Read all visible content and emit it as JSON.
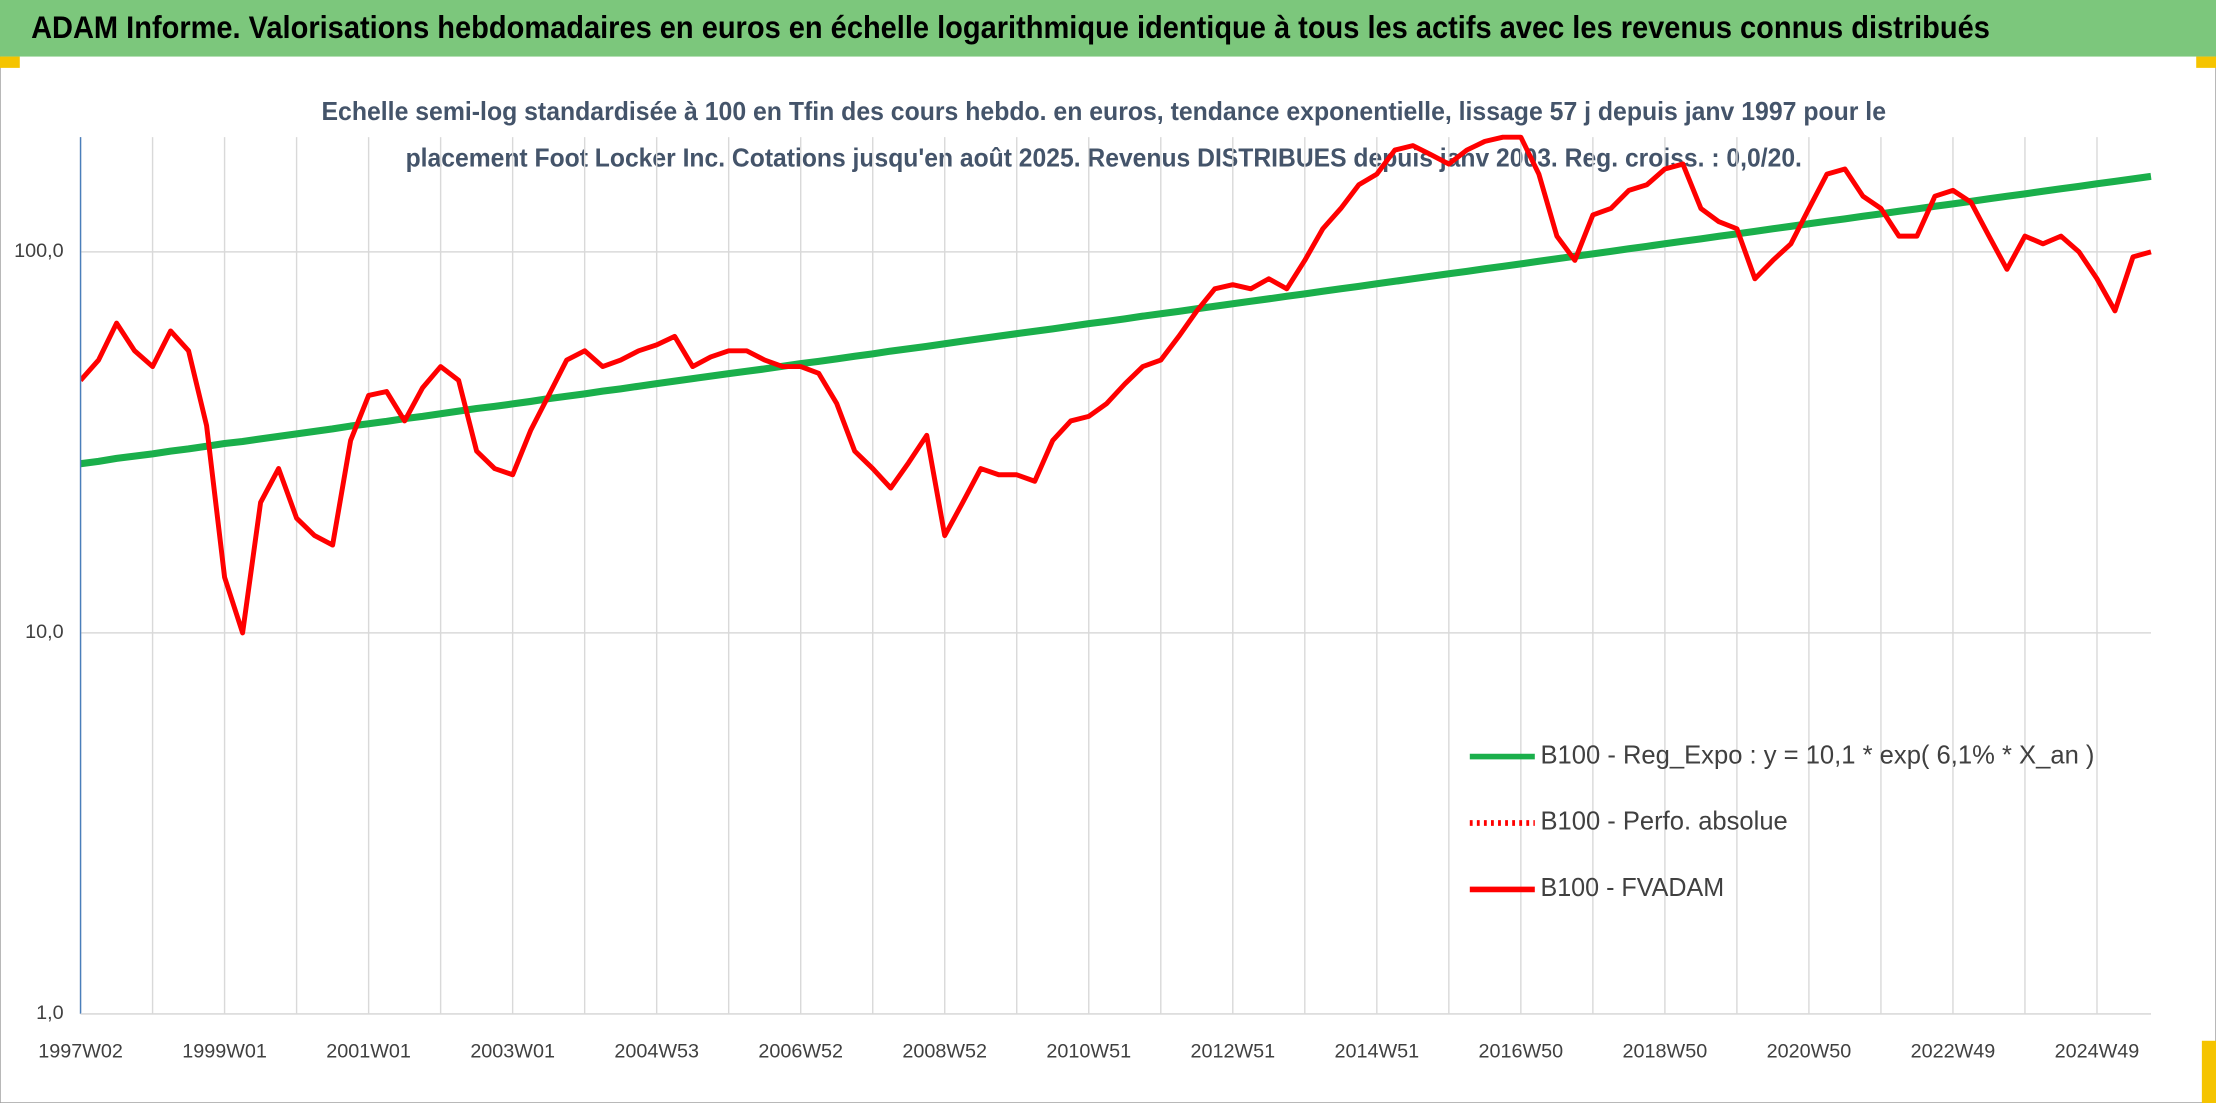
{
  "chart_data": {
    "type": "line",
    "title": "ADAM Informe. Valorisations hebdomadaires en euros en échelle logarithmique identique à tous les actifs avec les revenus connus distribués",
    "subtitle": [
      "Echelle semi-log standardisée à 100 en Tfin des cours hebdo. en euros, tendance exponentielle, lissage 57 j depuis janv 1997 pour le",
      "placement Foot Locker Inc. Cotations jusqu'en août 2025. Revenus DISTRIBUES depuis janv 2003. Reg. croiss. : 0,0/20."
    ],
    "log_scale": true,
    "ylim": [
      1,
      200
    ],
    "yticks": [
      {
        "value": 1,
        "label": "1,0"
      },
      {
        "value": 10,
        "label": "10,0"
      },
      {
        "value": 100,
        "label": "100,0"
      }
    ],
    "grid": true,
    "legend": "lower right",
    "categories": [
      "1997W02",
      null,
      null,
      null,
      null,
      null,
      null,
      null,
      "1999W01",
      null,
      null,
      null,
      null,
      null,
      null,
      null,
      "2001W01",
      null,
      null,
      null,
      null,
      null,
      null,
      null,
      "2003W01",
      null,
      null,
      null,
      null,
      null,
      null,
      null,
      "2004W53",
      null,
      null,
      null,
      null,
      null,
      null,
      null,
      "2006W52",
      null,
      null,
      null,
      null,
      null,
      null,
      null,
      "2008W52",
      null,
      null,
      null,
      null,
      null,
      null,
      null,
      "2010W51",
      null,
      null,
      null,
      null,
      null,
      null,
      null,
      "2012W51",
      null,
      null,
      null,
      null,
      null,
      null,
      null,
      "2014W51",
      null,
      null,
      null,
      null,
      null,
      null,
      null,
      "2016W50",
      null,
      null,
      null,
      null,
      null,
      null,
      null,
      "2018W50",
      null,
      null,
      null,
      null,
      null,
      null,
      null,
      "2020W50",
      null,
      null,
      null,
      null,
      null,
      null,
      null,
      "2022W49",
      null,
      null,
      null,
      null,
      null,
      null,
      null,
      "2024W49",
      null,
      null,
      null
    ],
    "series": [
      {
        "name": "B100 - Reg_Expo : y = 10,1 * exp( 6,1% *  X_an )",
        "color": "#1aaf4b",
        "dash": "solid",
        "values": [
          27.8,
          28.2,
          28.7,
          29.1,
          29.5,
          30.0,
          30.4,
          30.9,
          31.4,
          31.8,
          32.3,
          32.8,
          33.3,
          33.8,
          34.3,
          34.9,
          35.4,
          35.9,
          36.5,
          37.0,
          37.6,
          38.2,
          38.8,
          39.3,
          39.9,
          40.5,
          41.2,
          41.8,
          42.4,
          43.1,
          43.7,
          44.4,
          45.1,
          45.8,
          46.5,
          47.2,
          47.9,
          48.6,
          49.3,
          50.1,
          50.9,
          51.6,
          52.4,
          53.2,
          54.0,
          54.9,
          55.7,
          56.5,
          57.4,
          58.3,
          59.2,
          60.1,
          61.0,
          61.9,
          62.8,
          63.8,
          64.8,
          65.7,
          66.7,
          67.8,
          68.8,
          69.8,
          70.9,
          72.0,
          73.1,
          74.2,
          75.3,
          76.5,
          77.6,
          78.8,
          80.0,
          81.2,
          82.5,
          83.7,
          85.0,
          86.3,
          87.6,
          88.9,
          90.3,
          91.6,
          93.0,
          94.5,
          95.9,
          97.4,
          98.8,
          100.3,
          101.9,
          103.4,
          105.0,
          106.6,
          108.2,
          109.9,
          111.5,
          113.2,
          115.0,
          116.7,
          118.5,
          120.3,
          122.1,
          124.0,
          125.8,
          127.8,
          129.7,
          131.7,
          133.7,
          135.7,
          137.8,
          139.9,
          142.0,
          144.2,
          146.4,
          148.6,
          150.9,
          153.1,
          155.5,
          157.8
        ]
      },
      {
        "name": "B100 - Perfo. absolue",
        "color": "#ff0000",
        "dash": "dotted",
        "values": [
          null,
          null,
          null,
          null,
          null,
          null,
          null,
          null,
          null,
          null,
          null,
          null,
          null,
          null,
          null,
          null,
          null,
          null,
          null,
          null,
          null,
          null,
          null,
          null,
          null,
          null,
          null,
          null,
          null,
          null,
          null,
          null,
          null,
          null,
          null,
          null,
          null,
          null,
          null,
          null,
          null,
          null,
          null,
          null,
          null,
          null,
          null,
          null,
          null,
          null,
          null,
          null,
          null,
          null,
          null,
          null,
          null,
          null,
          null,
          null,
          null,
          null,
          null,
          null,
          null,
          null,
          null,
          null,
          null,
          null,
          null,
          null,
          null,
          null,
          null,
          null,
          null,
          null,
          null,
          null,
          null,
          null,
          null,
          null,
          null,
          null,
          null,
          null,
          null,
          null,
          null,
          null,
          null,
          null,
          null,
          null,
          null,
          null,
          null,
          null,
          null,
          null,
          null,
          null,
          null,
          null,
          null,
          null,
          null,
          null,
          null,
          null,
          null,
          null,
          null,
          null
        ]
      },
      {
        "name": "B100 - FVADAM",
        "color": "#ff0000",
        "dash": "solid",
        "values": [
          46,
          52,
          65,
          55,
          50,
          62,
          55,
          35,
          14,
          10,
          22,
          27,
          20,
          18,
          17,
          32,
          42,
          43,
          36,
          44,
          50,
          46,
          30,
          27,
          26,
          34,
          42,
          52,
          55,
          50,
          52,
          55,
          57,
          60,
          50,
          53,
          55,
          55,
          52,
          50,
          50,
          48,
          40,
          30,
          27,
          24,
          28,
          33,
          18,
          22,
          27,
          26,
          26,
          25,
          32,
          36,
          37,
          40,
          45,
          50,
          52,
          60,
          70,
          80,
          82,
          80,
          85,
          80,
          95,
          115,
          130,
          150,
          160,
          185,
          190,
          180,
          170,
          185,
          195,
          200,
          200,
          160,
          110,
          95,
          125,
          130,
          145,
          150,
          165,
          170,
          130,
          120,
          115,
          85,
          95,
          105,
          130,
          160,
          165,
          140,
          130,
          110,
          110,
          140,
          145,
          135,
          110,
          90,
          110,
          105,
          110,
          100,
          85,
          70,
          97,
          100
        ]
      }
    ]
  }
}
